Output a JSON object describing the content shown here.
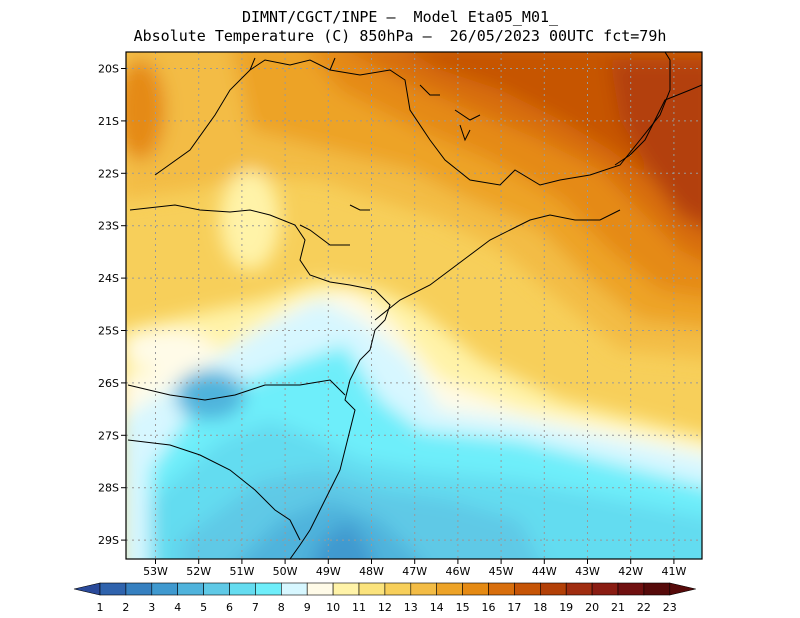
{
  "header": {
    "line1": "DIMNT/CGCT/INPE –  Model Eta05_M01_",
    "line2": "Absolute Temperature (C) 850hPa –  26/05/2023 00UTC fct=79h"
  },
  "map": {
    "lon_labels": [
      "53W",
      "52W",
      "51W",
      "50W",
      "49W",
      "48W",
      "47W",
      "46W",
      "45W",
      "44W",
      "43W",
      "42W",
      "41W"
    ],
    "lat_labels": [
      "20S",
      "21S",
      "22S",
      "23S",
      "24S",
      "25S",
      "26S",
      "27S",
      "28S",
      "29S"
    ],
    "gridlines": "dotted",
    "field": "temperature"
  },
  "colorbar": {
    "labels": [
      "1",
      "2",
      "3",
      "4",
      "5",
      "6",
      "7",
      "8",
      "9",
      "10",
      "11",
      "12",
      "13",
      "14",
      "15",
      "16",
      "17",
      "18",
      "19",
      "20",
      "21",
      "22",
      "23"
    ],
    "colors": [
      "#2a4a9a",
      "#2f63ad",
      "#3680c0",
      "#3f99cf",
      "#4fb3dc",
      "#5fc9e6",
      "#64dcf0",
      "#6eeefa",
      "#d7f7ff",
      "#fffbe8",
      "#fff3a8",
      "#fbe37c",
      "#f7cf5a",
      "#f3bc45",
      "#eda327",
      "#e58a13",
      "#d86e0c",
      "#c65406",
      "#b34007",
      "#a02d10",
      "#8a1c12",
      "#701010",
      "#560a0a"
    ]
  }
}
